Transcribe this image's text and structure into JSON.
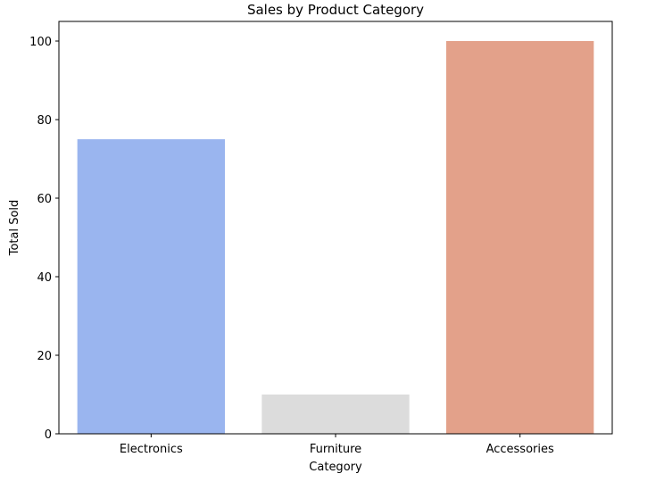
{
  "chart_data": {
    "type": "bar",
    "title": "Sales by Product Category",
    "xlabel": "Category",
    "ylabel": "Total Sold",
    "categories": [
      "Electronics",
      "Furniture",
      "Accessories"
    ],
    "values": [
      75,
      10,
      100
    ],
    "colors": [
      "#9ab5ef",
      "#dcdcdc",
      "#e3a18a"
    ],
    "ylim": [
      0,
      105
    ],
    "yticks": [
      0,
      20,
      40,
      60,
      80,
      100
    ],
    "grid": false
  }
}
